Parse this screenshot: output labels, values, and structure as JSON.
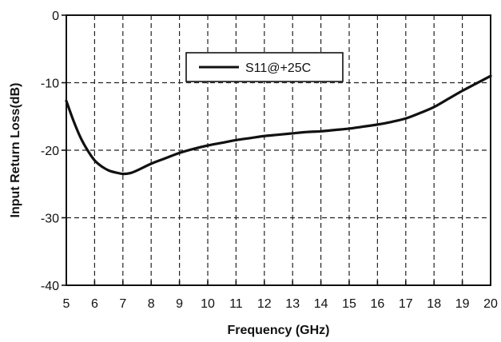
{
  "chart_data": {
    "type": "line",
    "title": "",
    "xlabel": "Frequency (GHz)",
    "ylabel": "Input Return Loss(dB)",
    "xlim": [
      5,
      20
    ],
    "ylim": [
      -40,
      0
    ],
    "x_ticks": [
      5,
      6,
      7,
      8,
      9,
      10,
      11,
      12,
      13,
      14,
      15,
      16,
      17,
      18,
      19,
      20
    ],
    "x_tick_labels": [
      "5",
      "6",
      "7",
      "8",
      "9",
      "10",
      "11",
      "12",
      "13",
      "14",
      "15",
      "16",
      "17",
      "18",
      "19",
      "20"
    ],
    "y_ticks": [
      0,
      -10,
      -20,
      -30,
      -40
    ],
    "y_tick_labels": [
      "0",
      "-10",
      "-20",
      "-30",
      "-40"
    ],
    "grid": true,
    "grid_style": "dashed",
    "legend": {
      "placement": "top-center",
      "entries": [
        "S11@+25C"
      ]
    },
    "colors": {
      "series": "#111111",
      "axis": "#111111",
      "grid": "#222222",
      "background": "#ffffff"
    },
    "series": [
      {
        "name": "S11@+25C",
        "x": [
          5,
          5.25,
          5.5,
          5.75,
          6,
          6.25,
          6.5,
          6.75,
          7,
          7.25,
          7.5,
          8,
          8.5,
          9,
          9.5,
          10,
          10.5,
          11,
          11.5,
          12,
          12.5,
          13,
          13.5,
          14,
          14.5,
          15,
          15.5,
          16,
          16.5,
          17,
          17.5,
          18,
          18.5,
          19,
          19.5,
          20
        ],
        "y": [
          -12.7,
          -15.6,
          -18.1,
          -20.0,
          -21.5,
          -22.4,
          -23.0,
          -23.3,
          -23.5,
          -23.4,
          -23.0,
          -22.0,
          -21.2,
          -20.4,
          -19.8,
          -19.3,
          -18.9,
          -18.5,
          -18.2,
          -17.9,
          -17.7,
          -17.5,
          -17.3,
          -17.2,
          -17.0,
          -16.8,
          -16.5,
          -16.2,
          -15.8,
          -15.3,
          -14.5,
          -13.6,
          -12.4,
          -11.2,
          -10.1,
          -9.0
        ]
      }
    ]
  }
}
